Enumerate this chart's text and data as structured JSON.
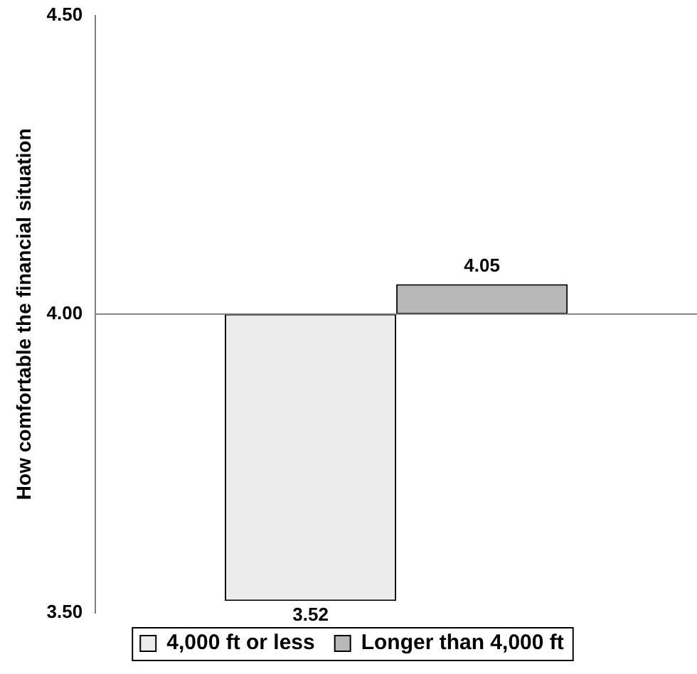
{
  "chart_data": {
    "type": "bar",
    "ylabel": "How comfortable the financial situation",
    "categories": [
      null
    ],
    "series": [
      {
        "name": "4,000 ft or less",
        "color": "#ececec",
        "base": [
          4.0
        ],
        "values": [
          -0.48
        ],
        "value_labels": [
          "3.52"
        ]
      },
      {
        "name": "Longer than 4,000 ft",
        "color": "#b8b8b8",
        "base": [
          4.0
        ],
        "values": [
          0.05
        ],
        "value_labels": [
          "4.05"
        ]
      }
    ],
    "ylim": [
      3.5,
      4.5
    ],
    "yticks": [
      {
        "value": 3.5,
        "label": "3.50"
      },
      {
        "value": 4.0,
        "label": "4.00"
      },
      {
        "value": 4.5,
        "label": "4.50"
      }
    ],
    "ref_lines": [
      {
        "axis": "y",
        "value": 4.0
      }
    ],
    "grid": false,
    "legend": "bottom",
    "tick_labels": "y"
  }
}
